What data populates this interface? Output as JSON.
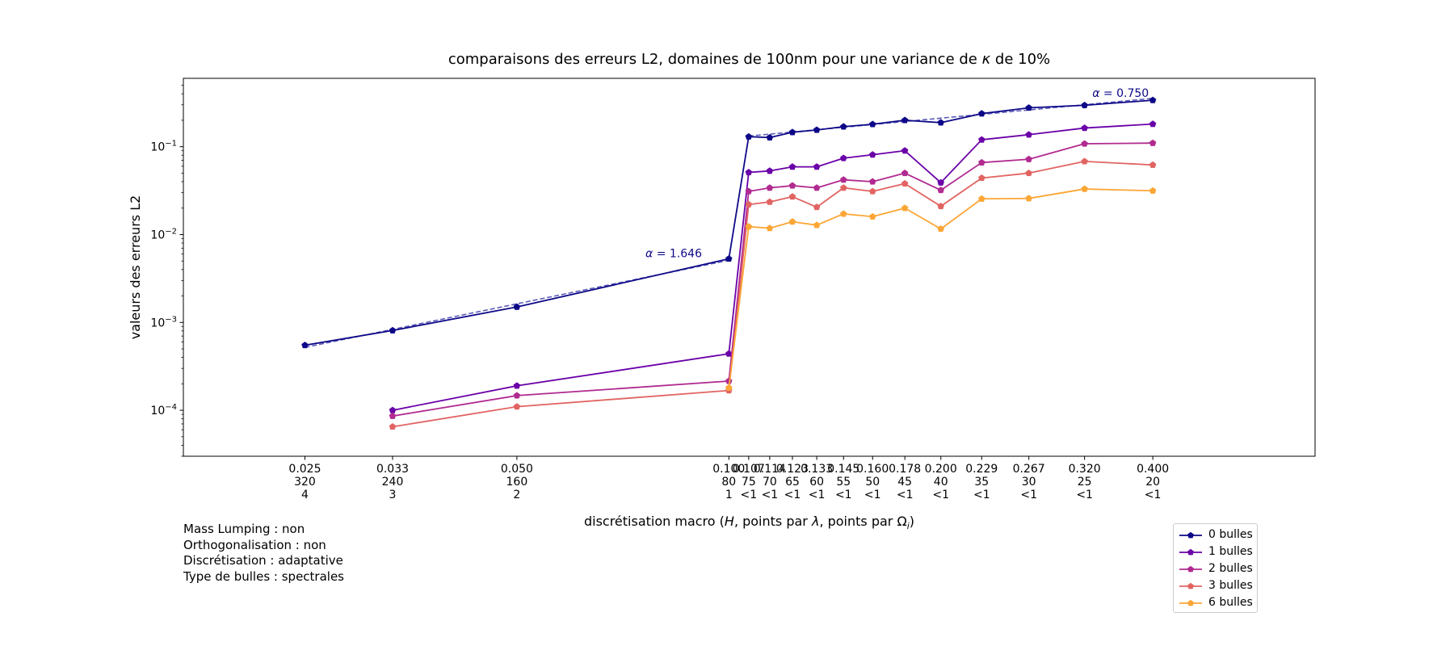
{
  "chart_data": {
    "type": "line",
    "title": "comparaisons des erreurs L2, domaines de 100nm pour une variance de κ de 10%",
    "title_parts": [
      "comparaisons des erreurs L2, domaines de 100nm pour une variance de ",
      "κ",
      " de 10%"
    ],
    "xlabel": "discrétisation macro (H, points par λ, points par Ωᵢ)",
    "xlabel_parts": [
      "discrétisation macro (",
      "H",
      ", points par ",
      "λ",
      ", points par ",
      "Ω",
      "i",
      ")"
    ],
    "ylabel": "valeurs des erreurs L2",
    "y_scale": "log",
    "ylim": [
      3e-05,
      0.6
    ],
    "y_ticks": [
      {
        "value": 0.0001,
        "mantissa": "10",
        "exp": "−4"
      },
      {
        "value": 0.001,
        "mantissa": "10",
        "exp": "−3"
      },
      {
        "value": 0.01,
        "mantissa": "10",
        "exp": "−2"
      },
      {
        "value": 0.1,
        "mantissa": "10",
        "exp": "−1"
      }
    ],
    "x_scale": "log",
    "xlim": [
      0.0168,
      0.68
    ],
    "x_ticks": [
      {
        "value": 0.025,
        "lines": [
          "0.025",
          "320",
          "4"
        ]
      },
      {
        "value": 0.0333,
        "lines": [
          "0.033",
          "240",
          "3"
        ]
      },
      {
        "value": 0.05,
        "lines": [
          "0.050",
          "160",
          "2"
        ]
      },
      {
        "value": 0.1,
        "lines": [
          "0.100",
          "80",
          "1"
        ]
      },
      {
        "value": 0.1067,
        "lines": [
          "0.107",
          "75",
          "<1"
        ]
      },
      {
        "value": 0.1143,
        "lines": [
          "0.114",
          "70",
          "<1"
        ]
      },
      {
        "value": 0.1231,
        "lines": [
          "0.123",
          "65",
          "<1"
        ]
      },
      {
        "value": 0.1333,
        "lines": [
          "0.133",
          "60",
          "<1"
        ]
      },
      {
        "value": 0.1455,
        "lines": [
          "0.145",
          "55",
          "<1"
        ]
      },
      {
        "value": 0.16,
        "lines": [
          "0.160",
          "50",
          "<1"
        ]
      },
      {
        "value": 0.1778,
        "lines": [
          "0.178",
          "45",
          "<1"
        ]
      },
      {
        "value": 0.2,
        "lines": [
          "0.200",
          "40",
          "<1"
        ]
      },
      {
        "value": 0.2286,
        "lines": [
          "0.229",
          "35",
          "<1"
        ]
      },
      {
        "value": 0.2667,
        "lines": [
          "0.267",
          "30",
          "<1"
        ]
      },
      {
        "value": 0.32,
        "lines": [
          "0.320",
          "25",
          "<1"
        ]
      },
      {
        "value": 0.4,
        "lines": [
          "0.400",
          "20",
          "<1"
        ]
      }
    ],
    "series": [
      {
        "name": "0 bulles",
        "color": "#0d0887",
        "points": [
          [
            0.025,
            0.00055
          ],
          [
            0.0333,
            0.00081
          ],
          [
            0.05,
            0.0015
          ],
          [
            0.1,
            0.0053
          ],
          [
            0.1067,
            0.13
          ],
          [
            0.1143,
            0.127
          ],
          [
            0.1231,
            0.146
          ],
          [
            0.1333,
            0.155
          ],
          [
            0.1455,
            0.169
          ],
          [
            0.16,
            0.18
          ],
          [
            0.1778,
            0.2
          ],
          [
            0.2,
            0.188
          ],
          [
            0.2286,
            0.238
          ],
          [
            0.2667,
            0.277
          ],
          [
            0.32,
            0.296
          ],
          [
            0.4,
            0.338
          ]
        ]
      },
      {
        "name": "1 bulles",
        "color": "#6a00a8",
        "points": [
          [
            0.0333,
            0.0001
          ],
          [
            0.05,
            0.00019
          ],
          [
            0.1,
            0.00044
          ],
          [
            0.1067,
            0.051
          ],
          [
            0.1143,
            0.053
          ],
          [
            0.1231,
            0.059
          ],
          [
            0.1333,
            0.059
          ],
          [
            0.1455,
            0.074
          ],
          [
            0.16,
            0.081
          ],
          [
            0.1778,
            0.09
          ],
          [
            0.2,
            0.039
          ],
          [
            0.2286,
            0.12
          ],
          [
            0.2667,
            0.137
          ],
          [
            0.32,
            0.163
          ],
          [
            0.4,
            0.181
          ]
        ]
      },
      {
        "name": "2 bulles",
        "color": "#b12a90",
        "points": [
          [
            0.0333,
            8.6e-05
          ],
          [
            0.05,
            0.000147
          ],
          [
            0.1,
            0.000215
          ],
          [
            0.1067,
            0.031
          ],
          [
            0.1143,
            0.034
          ],
          [
            0.1231,
            0.036
          ],
          [
            0.1333,
            0.034
          ],
          [
            0.1455,
            0.042
          ],
          [
            0.16,
            0.04
          ],
          [
            0.1778,
            0.05
          ],
          [
            0.2,
            0.032
          ],
          [
            0.2286,
            0.066
          ],
          [
            0.2667,
            0.072
          ],
          [
            0.32,
            0.108
          ],
          [
            0.4,
            0.11
          ]
        ]
      },
      {
        "name": "3 bulles",
        "color": "#e16462",
        "points": [
          [
            0.0333,
            6.5e-05
          ],
          [
            0.05,
            0.00011
          ],
          [
            0.1,
            0.000168
          ],
          [
            0.1067,
            0.022
          ],
          [
            0.1143,
            0.0235
          ],
          [
            0.1231,
            0.027
          ],
          [
            0.1333,
            0.0205
          ],
          [
            0.1455,
            0.034
          ],
          [
            0.16,
            0.031
          ],
          [
            0.1778,
            0.038
          ],
          [
            0.2,
            0.021
          ],
          [
            0.2286,
            0.044
          ],
          [
            0.2667,
            0.05
          ],
          [
            0.32,
            0.068
          ],
          [
            0.4,
            0.062
          ]
        ]
      },
      {
        "name": "6 bulles",
        "color": "#fca636",
        "points": [
          [
            0.1,
            0.00018
          ],
          [
            0.1067,
            0.0123
          ],
          [
            0.1143,
            0.0118
          ],
          [
            0.1231,
            0.014
          ],
          [
            0.1333,
            0.0128
          ],
          [
            0.1455,
            0.0172
          ],
          [
            0.16,
            0.016
          ],
          [
            0.1778,
            0.02
          ],
          [
            0.2,
            0.0116
          ],
          [
            0.2286,
            0.0255
          ],
          [
            0.2667,
            0.0258
          ],
          [
            0.32,
            0.033
          ],
          [
            0.4,
            0.0315
          ]
        ]
      }
    ],
    "fits": [
      {
        "label_prefix": "α",
        "label_value": " = 1.646",
        "color": "#5c5cb8",
        "from": [
          0.025,
          0.00052
        ],
        "to": [
          0.1,
          0.0051
        ],
        "label_at": [
          0.0835,
          0.0055
        ]
      },
      {
        "label_prefix": "α",
        "label_value": " = 0.750",
        "color": "#5c5cb8",
        "from": [
          0.1067,
          0.132
        ],
        "to": [
          0.4,
          0.355
        ],
        "label_at": [
          0.36,
          0.37
        ]
      }
    ],
    "legend_placement": "bottom-right, outside plot"
  },
  "params": [
    "Mass Lumping : non",
    "Orthogonalisation : non",
    "Discrétisation : adaptative",
    "Type de bulles : spectrales"
  ]
}
